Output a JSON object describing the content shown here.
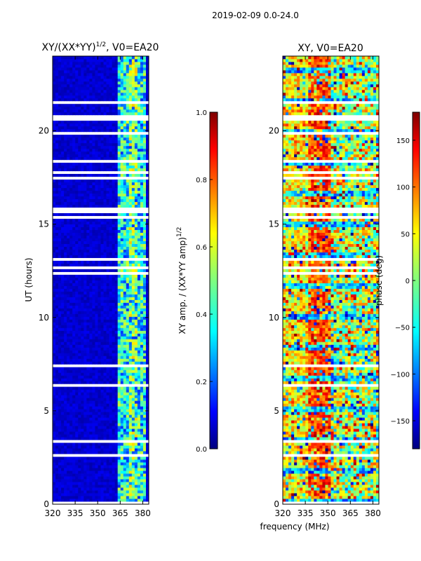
{
  "figure": {
    "suptitle": "2019-02-09 0.0-24.0",
    "xlabel": "frequency (MHz)"
  },
  "chart_data": [
    {
      "type": "heatmap",
      "title_base": "XY/(XX*YY)",
      "title_sup": "1/2",
      "title_suffix": ", V0=EA20",
      "xlabel": "",
      "ylabel": "UT (hours)",
      "x_ticks": [
        "320",
        "335",
        "350",
        "365",
        "380"
      ],
      "y_ticks": [
        "0",
        "5",
        "10",
        "15",
        "20"
      ],
      "xlim": [
        320,
        384
      ],
      "ylim": [
        0,
        24
      ],
      "colorbar": {
        "label_base": "XY amp. / (XX*YY amp)",
        "label_sup": "1/2",
        "ticks": [
          "0.0",
          "0.2",
          "0.4",
          "0.6",
          "0.8",
          "1.0"
        ],
        "range": [
          0.0,
          1.0
        ],
        "colormap": "jet"
      }
    },
    {
      "type": "heatmap",
      "title": "XY, V0=EA20",
      "xlabel": "frequency (MHz)",
      "ylabel": "",
      "x_ticks": [
        "320",
        "335",
        "350",
        "365",
        "380"
      ],
      "y_ticks": [
        "0",
        "5",
        "10",
        "15",
        "20"
      ],
      "xlim": [
        320,
        384
      ],
      "ylim": [
        0,
        24
      ],
      "colorbar": {
        "label": "phase (deg)",
        "ticks": [
          "-150",
          "-100",
          "−50",
          "0",
          "50",
          "100",
          "150"
        ],
        "display_ticks": [
          "−150",
          "−100",
          "−50",
          "0",
          "50",
          "100",
          "150"
        ],
        "range": [
          -180,
          180
        ],
        "colormap": "jet"
      }
    }
  ],
  "colors": {
    "jet": [
      "#00007f",
      "#0000ff",
      "#007fff",
      "#00ffff",
      "#7fff7f",
      "#ffff00",
      "#ff7f00",
      "#ff0000",
      "#7f0000"
    ],
    "background": "#ffffff"
  }
}
